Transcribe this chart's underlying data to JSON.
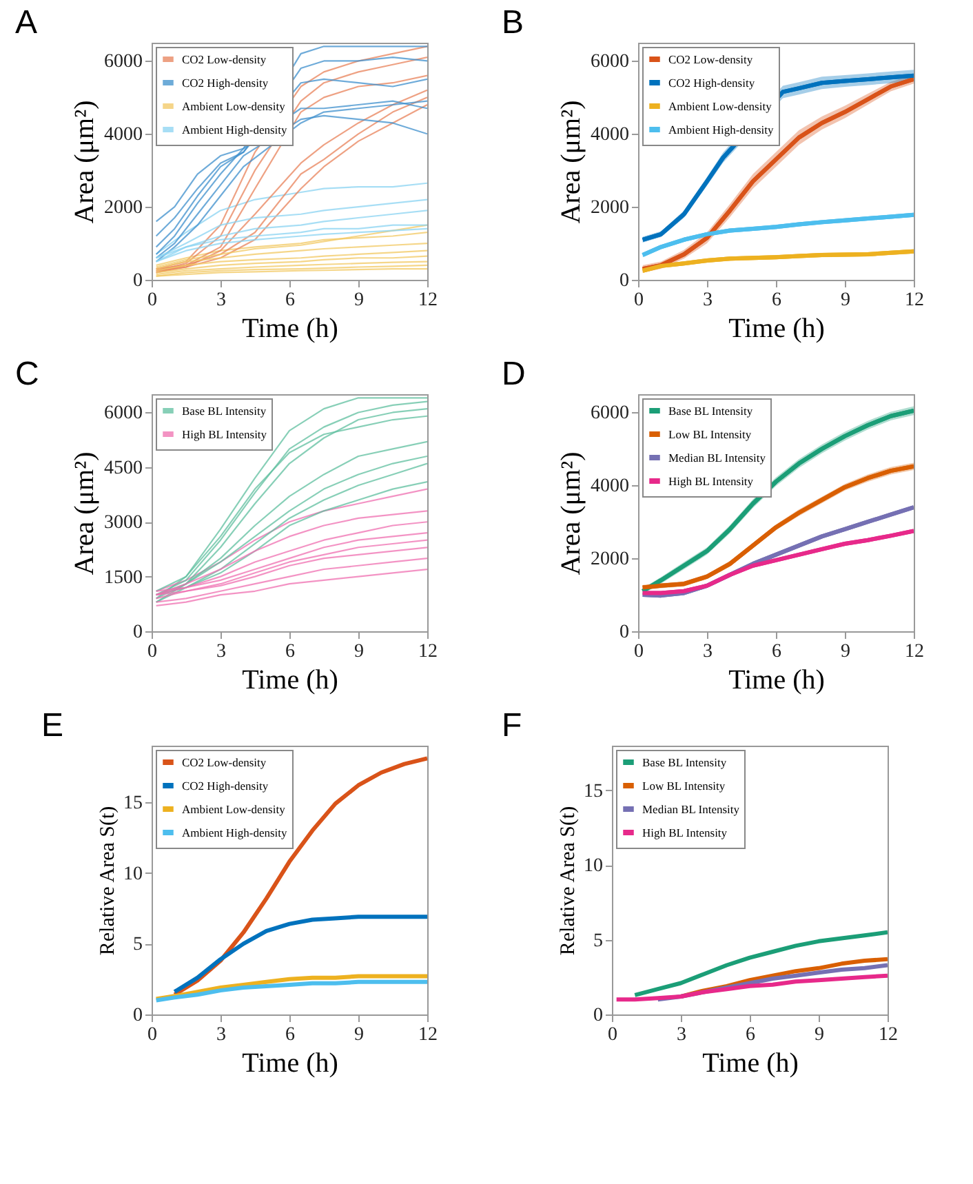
{
  "chart_data": [
    {
      "type": "line",
      "title": "A",
      "xlabel": "Time (h)",
      "ylabel": "Area (μm²)",
      "xlim": [
        0,
        12
      ],
      "xticks": [
        0,
        3,
        6,
        9,
        12
      ],
      "ylim": [
        0,
        6500
      ],
      "yticks": [
        0,
        2000,
        4000,
        6000
      ],
      "legend": "top left",
      "x": [
        0.2,
        1.5,
        3,
        4.5,
        6.5,
        7.5,
        9,
        10.5,
        12
      ],
      "series": [
        {
          "name": "CO2 Low-density",
          "color": "#e8825a",
          "values": [
            300,
            500,
            1500,
            3500,
            5300,
            5700,
            6000,
            6200,
            6400
          ]
        },
        {
          "color": "#e8825a",
          "values": [
            250,
            450,
            1200,
            3000,
            4900,
            5400,
            5700,
            5900,
            6100
          ]
        },
        {
          "color": "#e8825a",
          "values": [
            200,
            400,
            900,
            2500,
            4600,
            5000,
            5300,
            5400,
            5600
          ]
        },
        {
          "color": "#e8825a",
          "values": [
            300,
            400,
            700,
            1300,
            2900,
            3300,
            4000,
            4600,
            5000
          ]
        },
        {
          "color": "#e8825a",
          "values": [
            250,
            350,
            600,
            1100,
            2500,
            3100,
            3800,
            4300,
            4800
          ]
        },
        {
          "color": "#e8825a",
          "values": [
            200,
            350,
            800,
            1800,
            3200,
            3700,
            4300,
            4800,
            5200
          ]
        },
        {
          "name": "CO2 High-density",
          "color": "#3d8fcc",
          "x": [
            0.2,
            1,
            2,
            3,
            4,
            6.5,
            7.5,
            9,
            10.5,
            12
          ],
          "values": [
            1600,
            2000,
            2900,
            3400,
            3600,
            6200,
            6400,
            6400,
            6400,
            6400
          ]
        },
        {
          "color": "#3d8fcc",
          "x": [
            0.2,
            1,
            2,
            3,
            4,
            6.5,
            7.5,
            9,
            10.5,
            12
          ],
          "values": [
            1200,
            1700,
            2500,
            3200,
            3500,
            5800,
            6000,
            6000,
            6100,
            6000
          ]
        },
        {
          "color": "#3d8fcc",
          "x": [
            0.2,
            1,
            2,
            3,
            4,
            6.5,
            7.5,
            9,
            10.5,
            12
          ],
          "values": [
            700,
            1200,
            2100,
            2900,
            3600,
            4700,
            4700,
            4800,
            4900,
            4700
          ]
        },
        {
          "color": "#3d8fcc",
          "x": [
            0.2,
            1,
            2,
            3,
            4,
            6.5,
            7.5,
            9,
            10.5,
            12
          ],
          "values": [
            600,
            1000,
            1800,
            2600,
            3400,
            4400,
            4500,
            4400,
            4300,
            4000
          ]
        },
        {
          "color": "#3d8fcc",
          "x": [
            0.2,
            1,
            2,
            3,
            4,
            6.5,
            7.5,
            9,
            10.5,
            12
          ],
          "values": [
            900,
            1400,
            2300,
            3100,
            3500,
            5400,
            5500,
            5400,
            5300,
            5500
          ]
        },
        {
          "color": "#3d8fcc",
          "x": [
            0.2,
            1,
            2,
            3,
            4,
            6.5,
            7.5,
            9,
            10.5,
            12
          ],
          "values": [
            500,
            900,
            1500,
            2300,
            3100,
            4300,
            4600,
            4700,
            4800,
            4900
          ]
        },
        {
          "name": "Ambient Low-density",
          "color": "#f2c862",
          "values": [
            400,
            600,
            800,
            900,
            1000,
            1100,
            1150,
            1200,
            1300
          ]
        },
        {
          "color": "#f2c862",
          "values": [
            300,
            500,
            600,
            700,
            800,
            850,
            900,
            950,
            1000
          ]
        },
        {
          "color": "#f2c862",
          "values": [
            250,
            400,
            500,
            550,
            600,
            650,
            700,
            750,
            800
          ]
        },
        {
          "color": "#f2c862",
          "values": [
            200,
            300,
            400,
            450,
            500,
            550,
            600,
            600,
            650
          ]
        },
        {
          "color": "#f2c862",
          "values": [
            150,
            250,
            300,
            350,
            400,
            420,
            450,
            480,
            500
          ]
        },
        {
          "color": "#f2c862",
          "values": [
            100,
            200,
            250,
            280,
            300,
            320,
            350,
            370,
            400
          ]
        },
        {
          "color": "#f2c862",
          "values": [
            100,
            150,
            200,
            220,
            250,
            260,
            280,
            300,
            300
          ]
        },
        {
          "color": "#f2c862",
          "values": [
            350,
            550,
            700,
            850,
            950,
            1050,
            1200,
            1350,
            1500
          ]
        },
        {
          "name": "Ambient High-density",
          "color": "#8ad3f2",
          "values": [
            700,
            1300,
            1900,
            2200,
            2400,
            2500,
            2550,
            2550,
            2650
          ]
        },
        {
          "color": "#8ad3f2",
          "values": [
            600,
            1000,
            1500,
            1700,
            1800,
            1900,
            2000,
            2100,
            2200
          ]
        },
        {
          "color": "#8ad3f2",
          "values": [
            500,
            900,
            1200,
            1400,
            1500,
            1600,
            1700,
            1800,
            1900
          ]
        },
        {
          "color": "#8ad3f2",
          "values": [
            600,
            900,
            1100,
            1200,
            1300,
            1400,
            1400,
            1500,
            1500
          ]
        },
        {
          "color": "#8ad3f2",
          "values": [
            500,
            800,
            1000,
            1100,
            1200,
            1250,
            1300,
            1350,
            1400
          ]
        }
      ]
    },
    {
      "type": "line",
      "title": "B",
      "xlabel": "Time (h)",
      "ylabel": "Area (μm²)",
      "xlim": [
        0,
        12
      ],
      "xticks": [
        0,
        3,
        6,
        9,
        12
      ],
      "ylim": [
        0,
        6500
      ],
      "yticks": [
        0,
        2000,
        4000,
        6000
      ],
      "legend": "top left",
      "x": [
        0.2,
        1,
        2,
        3,
        4,
        5,
        6,
        7,
        8,
        9,
        10,
        11,
        12
      ],
      "series": [
        {
          "name": "CO2 Low-density",
          "color": "#d95319",
          "values": [
            300,
            400,
            700,
            1150,
            1900,
            2700,
            3300,
            3900,
            4300,
            4600,
            4950,
            5300,
            5500
          ],
          "lower": [
            200,
            300,
            580,
            1000,
            1720,
            2500,
            3100,
            3700,
            4120,
            4430,
            4800,
            5170,
            5380
          ],
          "upper": [
            400,
            500,
            820,
            1300,
            2080,
            2900,
            3500,
            4100,
            4480,
            4770,
            5100,
            5430,
            5620
          ]
        },
        {
          "name": "CO2 High-density",
          "color": "#0072bd",
          "x": [
            0.2,
            1,
            2,
            3,
            3.7,
            6.3,
            7,
            8,
            9,
            10,
            11,
            12
          ],
          "values": [
            1100,
            1250,
            1800,
            2700,
            3350,
            5150,
            5250,
            5400,
            5450,
            5500,
            5550,
            5600
          ],
          "lower": [
            1020,
            1170,
            1700,
            2580,
            3210,
            4980,
            5080,
            5230,
            5290,
            5340,
            5390,
            5440
          ],
          "upper": [
            1180,
            1330,
            1900,
            2820,
            3490,
            5320,
            5420,
            5570,
            5610,
            5660,
            5710,
            5760
          ]
        },
        {
          "name": "Ambient Low-density",
          "color": "#edb120",
          "values": [
            250,
            380,
            450,
            530,
            580,
            600,
            620,
            650,
            680,
            690,
            700,
            740,
            780
          ],
          "lower": [
            190,
            320,
            390,
            470,
            520,
            540,
            560,
            590,
            620,
            630,
            640,
            680,
            720
          ],
          "upper": [
            310,
            440,
            510,
            590,
            640,
            660,
            680,
            710,
            740,
            750,
            760,
            800,
            840
          ]
        },
        {
          "name": "Ambient High-density",
          "color": "#4dbeee",
          "values": [
            680,
            900,
            1100,
            1250,
            1350,
            1400,
            1450,
            1520,
            1580,
            1630,
            1680,
            1730,
            1780
          ],
          "lower": [
            620,
            840,
            1040,
            1190,
            1290,
            1340,
            1390,
            1460,
            1520,
            1570,
            1620,
            1670,
            1720
          ],
          "upper": [
            740,
            960,
            1160,
            1310,
            1410,
            1460,
            1510,
            1580,
            1640,
            1690,
            1740,
            1790,
            1840
          ]
        }
      ]
    },
    {
      "type": "line",
      "title": "C",
      "xlabel": "Time (h)",
      "ylabel": "Area (μm²)",
      "xlim": [
        0,
        12
      ],
      "xticks": [
        0,
        3,
        6,
        9,
        12
      ],
      "ylim": [
        0,
        6500
      ],
      "yticks": [
        0,
        1500,
        3000,
        4500,
        6000
      ],
      "legend": "top left",
      "x": [
        0.2,
        1.5,
        3,
        4.5,
        6,
        7.5,
        9,
        10.5,
        12
      ],
      "series": [
        {
          "name": "Base BL Intensity",
          "color": "#5fbf9f",
          "values": [
            900,
            1500,
            2800,
            4200,
            5500,
            6100,
            6400,
            6400,
            6400
          ]
        },
        {
          "color": "#5fbf9f",
          "values": [
            1000,
            1400,
            2500,
            3800,
            5000,
            5600,
            6000,
            6200,
            6300
          ]
        },
        {
          "color": "#5fbf9f",
          "values": [
            800,
            1300,
            2300,
            3500,
            4600,
            5300,
            5800,
            6000,
            6100
          ]
        },
        {
          "color": "#5fbf9f",
          "values": [
            1100,
            1500,
            2600,
            3900,
            4900,
            5400,
            5600,
            5800,
            5900
          ]
        },
        {
          "color": "#5fbf9f",
          "values": [
            900,
            1300,
            2000,
            2900,
            3700,
            4300,
            4800,
            5000,
            5200
          ]
        },
        {
          "color": "#5fbf9f",
          "values": [
            1000,
            1300,
            1900,
            2600,
            3300,
            3900,
            4300,
            4600,
            4800
          ]
        },
        {
          "color": "#5fbf9f",
          "values": [
            800,
            1200,
            1700,
            2400,
            3100,
            3600,
            4000,
            4300,
            4600
          ]
        },
        {
          "color": "#5fbf9f",
          "values": [
            1000,
            1200,
            1600,
            2200,
            2900,
            3300,
            3600,
            3900,
            4100
          ]
        },
        {
          "name": "High BL Intensity",
          "color": "#ef6fb0",
          "values": [
            1100,
            1400,
            1900,
            2500,
            3000,
            3300,
            3500,
            3700,
            3900
          ]
        },
        {
          "color": "#ef6fb0",
          "values": [
            1000,
            1300,
            1700,
            2200,
            2600,
            2900,
            3100,
            3200,
            3300
          ]
        },
        {
          "color": "#ef6fb0",
          "values": [
            1000,
            1200,
            1500,
            1900,
            2200,
            2500,
            2700,
            2900,
            3000
          ]
        },
        {
          "color": "#ef6fb0",
          "values": [
            1100,
            1200,
            1400,
            1700,
            2000,
            2300,
            2500,
            2600,
            2700
          ]
        },
        {
          "color": "#ef6fb0",
          "values": [
            900,
            1100,
            1300,
            1600,
            1900,
            2100,
            2300,
            2400,
            2500
          ]
        },
        {
          "color": "#ef6fb0",
          "values": [
            1000,
            1100,
            1250,
            1500,
            1800,
            2000,
            2100,
            2200,
            2300
          ]
        },
        {
          "color": "#ef6fb0",
          "values": [
            800,
            900,
            1100,
            1300,
            1500,
            1700,
            1800,
            1900,
            2000
          ]
        },
        {
          "color": "#ef6fb0",
          "values": [
            700,
            800,
            1000,
            1100,
            1300,
            1400,
            1500,
            1600,
            1700
          ]
        }
      ]
    },
    {
      "type": "line",
      "title": "D",
      "xlabel": "Time (h)",
      "ylabel": "Area (μm²)",
      "xlim": [
        0,
        12
      ],
      "xticks": [
        0,
        3,
        6,
        9,
        12
      ],
      "ylim": [
        0,
        6500
      ],
      "yticks": [
        0,
        2000,
        4000,
        6000
      ],
      "legend": "top left",
      "x": [
        0.2,
        1,
        2,
        3,
        4,
        5,
        6,
        7,
        8,
        9,
        10,
        11,
        12
      ],
      "series": [
        {
          "name": "Base BL Intensity",
          "color": "#1b9e77",
          "values": [
            1100,
            1400,
            1800,
            2200,
            2800,
            3500,
            4100,
            4600,
            5000,
            5350,
            5650,
            5900,
            6050
          ],
          "lower": [
            1020,
            1310,
            1700,
            2100,
            2690,
            3380,
            3980,
            4480,
            4880,
            5230,
            5530,
            5780,
            5930
          ],
          "upper": [
            1180,
            1490,
            1900,
            2300,
            2910,
            3620,
            4220,
            4720,
            5120,
            5470,
            5770,
            6020,
            6170
          ]
        },
        {
          "name": "Low BL Intensity",
          "color": "#d95f02",
          "values": [
            1200,
            1250,
            1300,
            1500,
            1850,
            2350,
            2850,
            3250,
            3600,
            3950,
            4200,
            4400,
            4520
          ],
          "lower": [
            1130,
            1180,
            1230,
            1430,
            1770,
            2270,
            2770,
            3160,
            3510,
            3860,
            4100,
            4300,
            4420
          ],
          "upper": [
            1270,
            1320,
            1370,
            1570,
            1930,
            2430,
            2930,
            3340,
            3690,
            4040,
            4300,
            4500,
            4620
          ]
        },
        {
          "name": "Median BL Intensity",
          "color": "#7570b3",
          "values": [
            1000,
            980,
            1050,
            1250,
            1550,
            1850,
            2100,
            2350,
            2600,
            2800,
            3000,
            3200,
            3400
          ]
        },
        {
          "name": "High BL Intensity",
          "color": "#e7298a",
          "values": [
            1050,
            1050,
            1100,
            1250,
            1550,
            1800,
            1950,
            2100,
            2250,
            2400,
            2500,
            2620,
            2750
          ]
        }
      ]
    },
    {
      "type": "line",
      "title": "E",
      "xlabel": "Time (h)",
      "ylabel": "Relative Area S(t)",
      "xlim": [
        0,
        12
      ],
      "xticks": [
        0,
        3,
        6,
        9,
        12
      ],
      "ylim": [
        0,
        19
      ],
      "yticks": [
        0,
        5,
        10,
        15
      ],
      "legend": "top left",
      "x": [
        0.2,
        1,
        2,
        3,
        4,
        5,
        6,
        7,
        8,
        9,
        10,
        11,
        12
      ],
      "series": [
        {
          "name": "CO2 Low-density",
          "color": "#d95319",
          "values": [
            null,
            1.4,
            2.4,
            3.8,
            5.8,
            8.2,
            10.8,
            13.0,
            14.9,
            16.2,
            17.1,
            17.7,
            18.1
          ]
        },
        {
          "name": "CO2 High-density",
          "color": "#0072bd",
          "values": [
            null,
            1.6,
            2.6,
            3.9,
            5.0,
            5.9,
            6.4,
            6.7,
            6.8,
            6.9,
            6.9,
            6.9,
            6.9
          ]
        },
        {
          "name": "Ambient Low-density",
          "color": "#edb120",
          "values": [
            1.1,
            1.3,
            1.6,
            1.9,
            2.1,
            2.3,
            2.5,
            2.6,
            2.6,
            2.7,
            2.7,
            2.7,
            2.7
          ]
        },
        {
          "name": "Ambient High-density",
          "color": "#4dbeee",
          "values": [
            1.0,
            1.2,
            1.4,
            1.7,
            1.9,
            2.0,
            2.1,
            2.2,
            2.2,
            2.3,
            2.3,
            2.3,
            2.3
          ]
        }
      ]
    },
    {
      "type": "line",
      "title": "F",
      "xlabel": "Time (h)",
      "ylabel": "Relative Area S(t)",
      "xlim": [
        0,
        12
      ],
      "xticks": [
        0,
        3,
        6,
        9,
        12
      ],
      "ylim": [
        0,
        18
      ],
      "yticks": [
        0,
        5,
        10,
        15
      ],
      "legend": "top left",
      "x": [
        0.2,
        1,
        2,
        3,
        4,
        5,
        6,
        7,
        8,
        9,
        10,
        11,
        12
      ],
      "series": [
        {
          "name": "Base BL Intensity",
          "color": "#1b9e77",
          "values": [
            null,
            1.3,
            1.7,
            2.1,
            2.7,
            3.3,
            3.8,
            4.2,
            4.6,
            4.9,
            5.1,
            5.3,
            5.5
          ]
        },
        {
          "name": "Low BL Intensity",
          "color": "#d95f02",
          "values": [
            null,
            null,
            null,
            1.2,
            1.6,
            1.9,
            2.3,
            2.6,
            2.9,
            3.1,
            3.4,
            3.6,
            3.7
          ]
        },
        {
          "name": "Median BL Intensity",
          "color": "#7570b3",
          "values": [
            null,
            null,
            1.0,
            1.2,
            1.5,
            1.8,
            2.1,
            2.4,
            2.6,
            2.8,
            3.0,
            3.1,
            3.3
          ]
        },
        {
          "name": "High BL Intensity",
          "color": "#e7298a",
          "values": [
            1.0,
            1.0,
            1.1,
            1.2,
            1.5,
            1.7,
            1.9,
            2.0,
            2.2,
            2.3,
            2.4,
            2.5,
            2.6
          ]
        }
      ]
    }
  ]
}
